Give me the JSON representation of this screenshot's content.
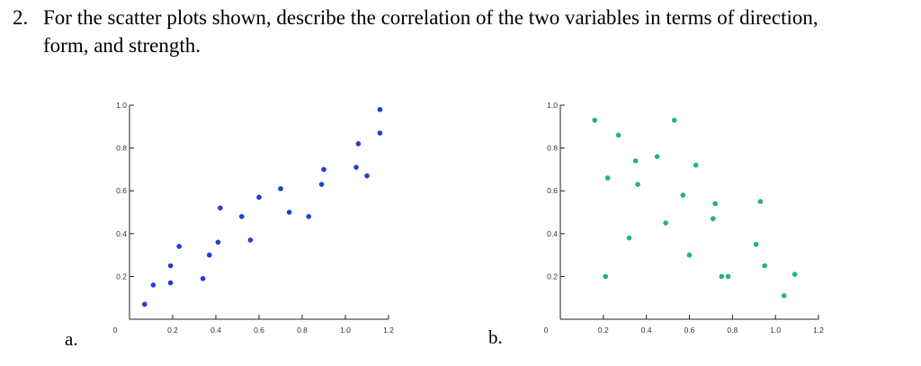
{
  "question": {
    "number": "2.",
    "line1": "For the scatter plots shown, describe the correlation of the two variables in terms of direction,",
    "line2": "form, and strength."
  },
  "chart_data": [
    {
      "type": "scatter",
      "label": "a.",
      "color": "#1f3fd6",
      "xlim": [
        0,
        1.2
      ],
      "ylim": [
        0,
        1.0
      ],
      "x_ticks": [
        {
          "v": 0,
          "t": "0"
        },
        {
          "v": 0.2,
          "t": "0.2"
        },
        {
          "v": 0.4,
          "t": "0.4"
        },
        {
          "v": 0.6,
          "t": "0.6"
        },
        {
          "v": 0.8,
          "t": "0.8"
        },
        {
          "v": 1.0,
          "t": "1.0"
        },
        {
          "v": 1.2,
          "t": "1.2"
        }
      ],
      "y_ticks": [
        {
          "v": 0.2,
          "t": "0.2"
        },
        {
          "v": 0.4,
          "t": "0.4"
        },
        {
          "v": 0.6,
          "t": "0.6"
        },
        {
          "v": 0.8,
          "t": "0.8"
        },
        {
          "v": 1.0,
          "t": "1.0"
        }
      ],
      "points": [
        [
          0.07,
          0.07
        ],
        [
          0.11,
          0.16
        ],
        [
          0.19,
          0.17
        ],
        [
          0.19,
          0.25
        ],
        [
          0.23,
          0.34
        ],
        [
          0.34,
          0.19
        ],
        [
          0.37,
          0.3
        ],
        [
          0.41,
          0.36
        ],
        [
          0.42,
          0.52
        ],
        [
          0.52,
          0.48
        ],
        [
          0.56,
          0.37
        ],
        [
          0.6,
          0.57
        ],
        [
          0.7,
          0.61
        ],
        [
          0.74,
          0.5
        ],
        [
          0.83,
          0.48
        ],
        [
          0.89,
          0.63
        ],
        [
          0.9,
          0.7
        ],
        [
          1.05,
          0.71
        ],
        [
          1.06,
          0.82
        ],
        [
          1.1,
          0.67
        ],
        [
          1.16,
          0.87
        ],
        [
          1.16,
          0.98
        ]
      ]
    },
    {
      "type": "scatter",
      "label": "b.",
      "color": "#22b573",
      "xlim": [
        0,
        1.2
      ],
      "ylim": [
        0,
        1.0
      ],
      "x_ticks": [
        {
          "v": 0,
          "t": "0"
        },
        {
          "v": 0.2,
          "t": "0.2"
        },
        {
          "v": 0.4,
          "t": "0.4"
        },
        {
          "v": 0.6,
          "t": "0.6"
        },
        {
          "v": 0.8,
          "t": "0.8"
        },
        {
          "v": 1.0,
          "t": "1.0"
        },
        {
          "v": 1.2,
          "t": "1.2"
        }
      ],
      "y_ticks": [
        {
          "v": 0.2,
          "t": "0.2"
        },
        {
          "v": 0.4,
          "t": "0.4"
        },
        {
          "v": 0.6,
          "t": "0.6"
        },
        {
          "v": 0.8,
          "t": "0.8"
        },
        {
          "v": 1.0,
          "t": "1.0"
        }
      ],
      "points": [
        [
          0.16,
          0.93
        ],
        [
          0.21,
          0.2
        ],
        [
          0.22,
          0.66
        ],
        [
          0.27,
          0.86
        ],
        [
          0.32,
          0.38
        ],
        [
          0.35,
          0.74
        ],
        [
          0.36,
          0.63
        ],
        [
          0.45,
          0.76
        ],
        [
          0.49,
          0.45
        ],
        [
          0.53,
          0.93
        ],
        [
          0.57,
          0.58
        ],
        [
          0.6,
          0.3
        ],
        [
          0.63,
          0.72
        ],
        [
          0.71,
          0.47
        ],
        [
          0.72,
          0.54
        ],
        [
          0.75,
          0.2
        ],
        [
          0.78,
          0.2
        ],
        [
          0.91,
          0.35
        ],
        [
          0.93,
          0.55
        ],
        [
          0.95,
          0.25
        ],
        [
          1.04,
          0.11
        ],
        [
          1.09,
          0.21
        ]
      ]
    }
  ]
}
